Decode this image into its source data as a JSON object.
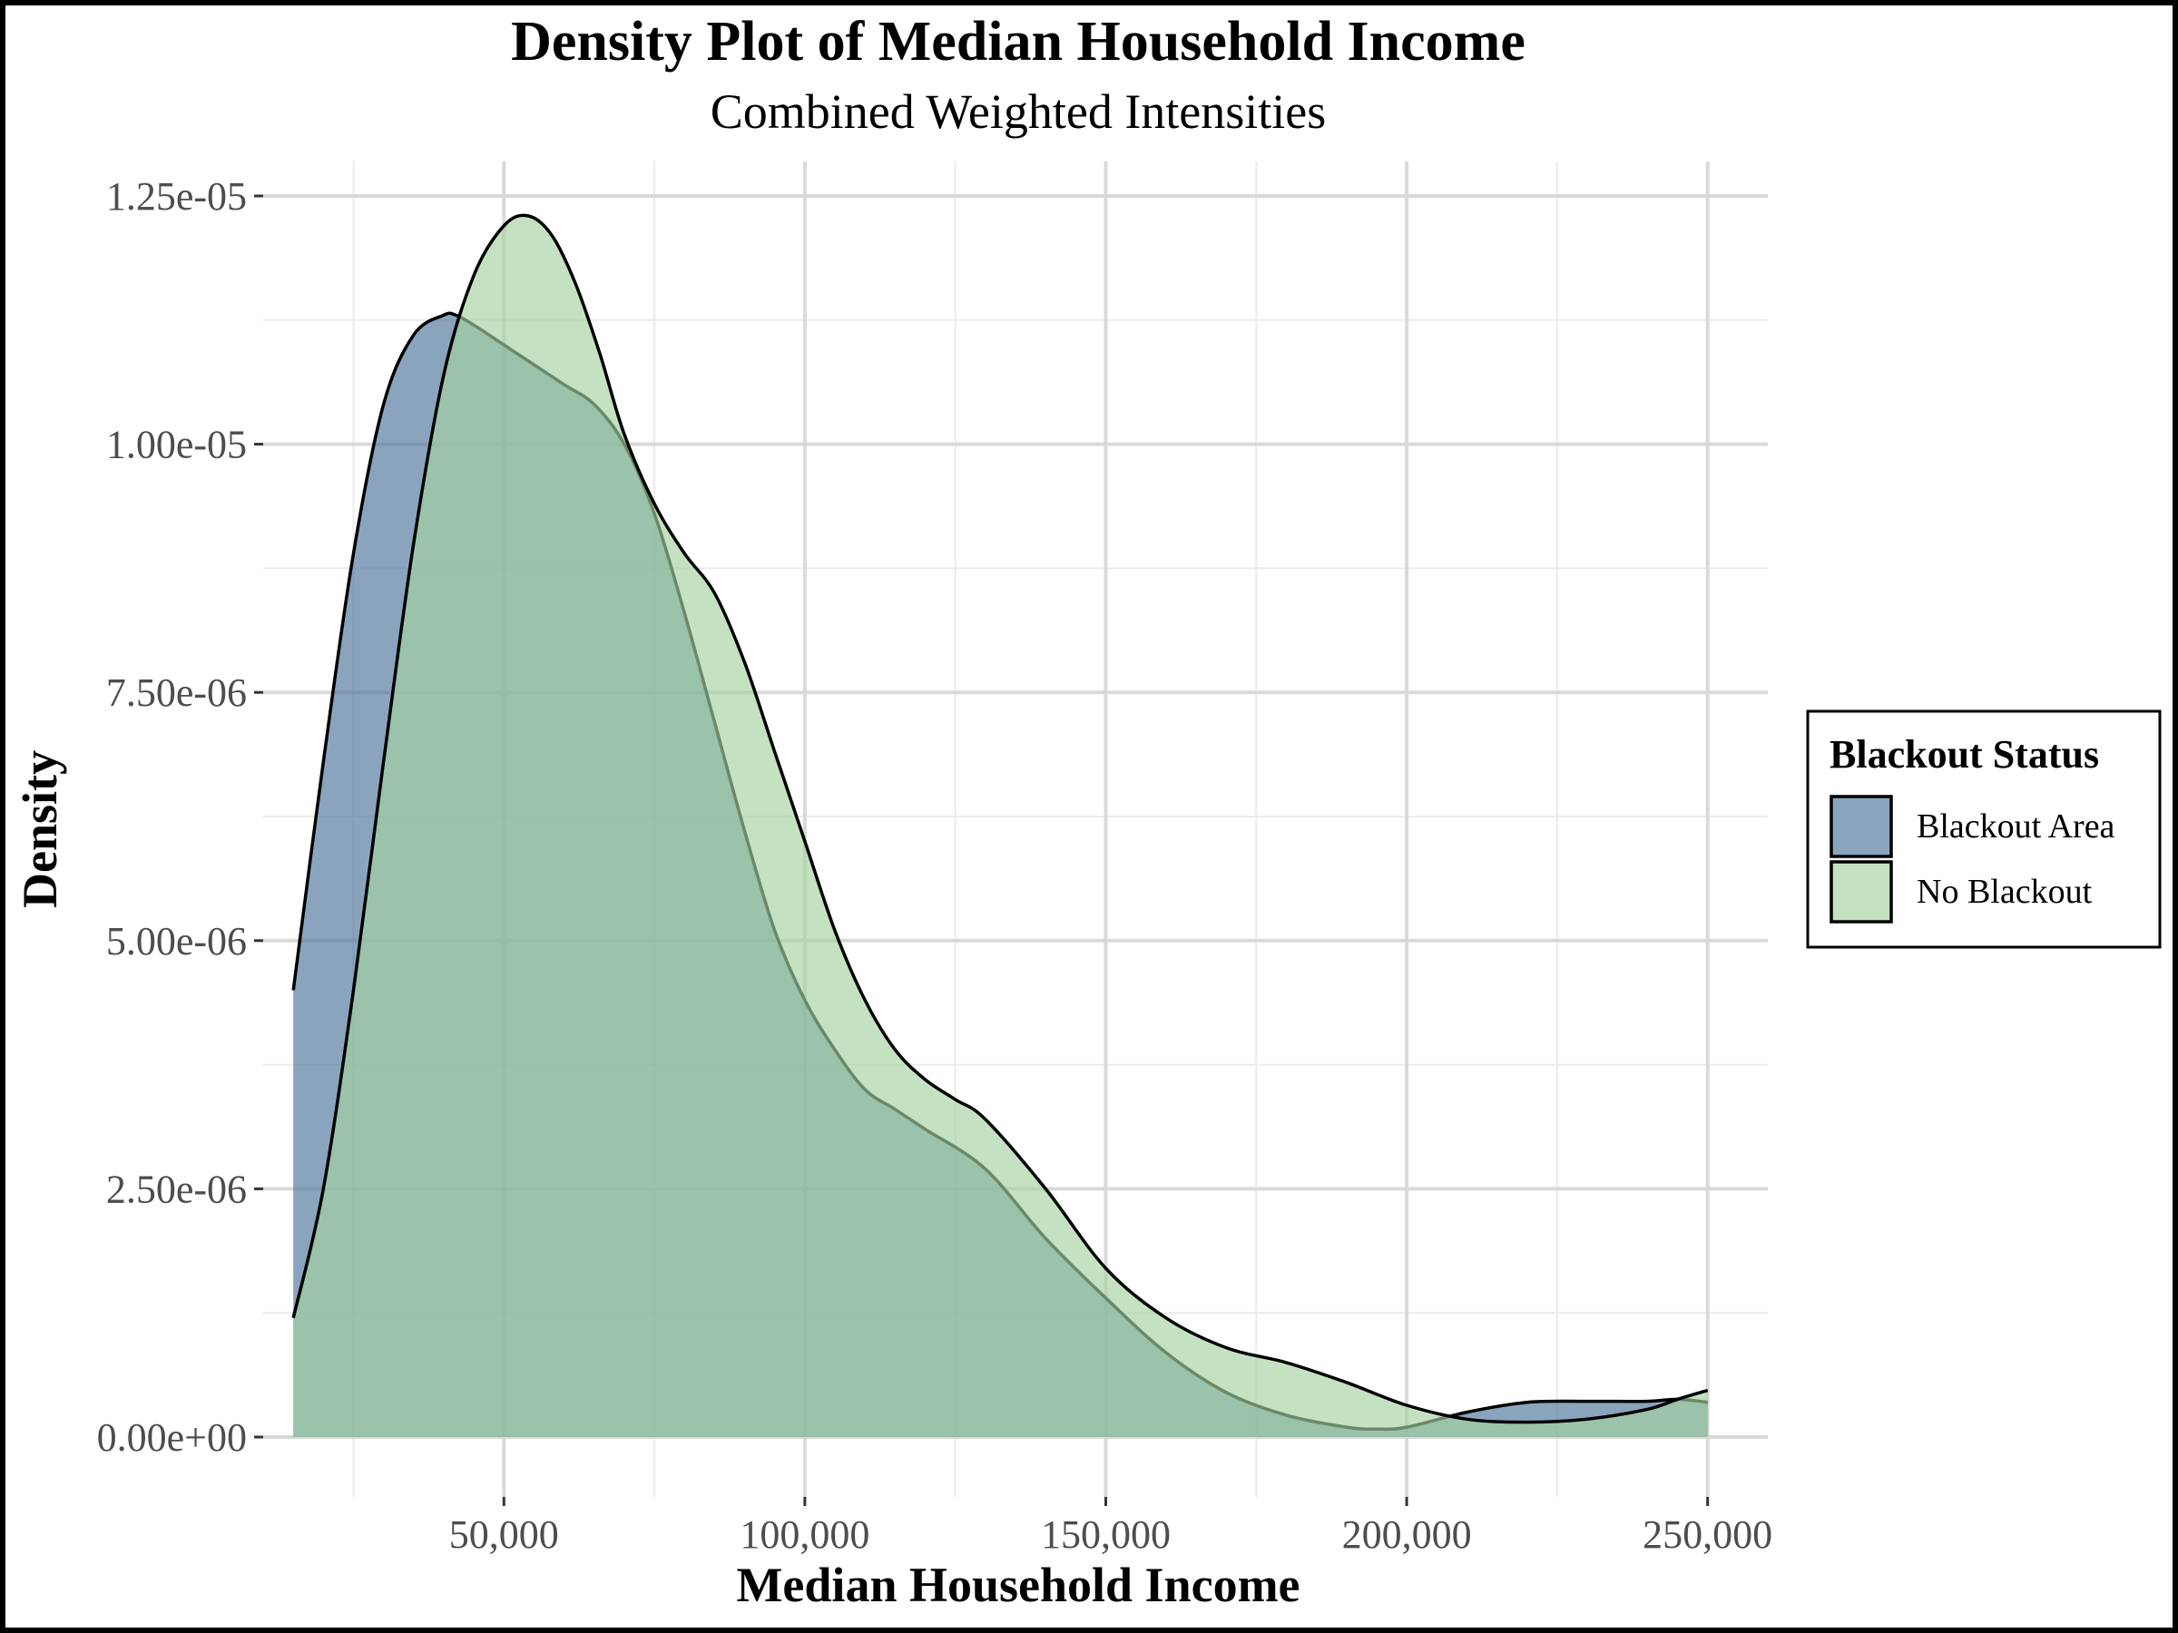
{
  "chart_data": {
    "type": "area",
    "title": "Density Plot of Median Household Income",
    "subtitle": "Combined Weighted Intensities",
    "xlabel": "Median Household Income",
    "ylabel": "Density",
    "xlim": [
      10000,
      260000
    ],
    "ylim": [
      0,
      1.25e-05
    ],
    "x_ticks": [
      {
        "value": 50000,
        "label": "50,000"
      },
      {
        "value": 100000,
        "label": "100,000"
      },
      {
        "value": 150000,
        "label": "150,000"
      },
      {
        "value": 200000,
        "label": "200,000"
      },
      {
        "value": 250000,
        "label": "250,000"
      }
    ],
    "y_ticks": [
      {
        "value": 0,
        "label": "0.00e+00"
      },
      {
        "value": 2.5e-06,
        "label": "2.50e-06"
      },
      {
        "value": 5e-06,
        "label": "5.00e-06"
      },
      {
        "value": 7.5e-06,
        "label": "7.50e-06"
      },
      {
        "value": 1e-05,
        "label": "1.00e-05"
      },
      {
        "value": 1.25e-05,
        "label": "1.25e-05"
      }
    ],
    "grid": true,
    "legend": {
      "title": "Blackout Status",
      "position": "right"
    },
    "series": [
      {
        "name": "Blackout Area",
        "color": "#4c7399",
        "x": [
          15000,
          20000,
          25000,
          30000,
          35000,
          40000,
          42000,
          45000,
          50000,
          55000,
          60000,
          65000,
          70000,
          75000,
          80000,
          85000,
          90000,
          95000,
          100000,
          105000,
          110000,
          115000,
          120000,
          130000,
          140000,
          150000,
          160000,
          170000,
          180000,
          190000,
          195000,
          200000,
          210000,
          220000,
          230000,
          240000,
          245000,
          250000
        ],
        "y": [
          4.5e-06,
          6.8e-06,
          8.9e-06,
          1.04e-05,
          1.11e-05,
          1.13e-05,
          1.13e-05,
          1.12e-05,
          1.1e-05,
          1.08e-05,
          1.06e-05,
          1.04e-05,
          1e-05,
          9.3e-06,
          8.3e-06,
          7.2e-06,
          6.1e-06,
          5.1e-06,
          4.4e-06,
          3.9e-06,
          3.5e-06,
          3.3e-06,
          3.1e-06,
          2.7e-06,
          2e-06,
          1.4e-06,
          8.5e-07,
          4.5e-07,
          2.2e-07,
          1e-07,
          8e-08,
          1e-07,
          2.5e-07,
          3.5e-07,
          3.6e-07,
          3.6e-07,
          3.8e-07,
          3.5e-07
        ]
      },
      {
        "name": "No Blackout",
        "color": "#a5d3a0",
        "x": [
          15000,
          20000,
          25000,
          30000,
          35000,
          40000,
          45000,
          50000,
          54000,
          58000,
          62000,
          66000,
          70000,
          75000,
          80000,
          85000,
          90000,
          95000,
          100000,
          105000,
          110000,
          115000,
          120000,
          125000,
          130000,
          140000,
          150000,
          160000,
          170000,
          180000,
          190000,
          200000,
          210000,
          220000,
          230000,
          240000,
          245000,
          250000
        ],
        "y": [
          1.2e-06,
          2.5e-06,
          4.5e-06,
          6.8e-06,
          9e-06,
          1.07e-05,
          1.17e-05,
          1.22e-05,
          1.23e-05,
          1.21e-05,
          1.16e-05,
          1.09e-05,
          1.01e-05,
          9.4e-06,
          8.9e-06,
          8.5e-06,
          7.8e-06,
          6.9e-06,
          6e-06,
          5.1e-06,
          4.4e-06,
          3.9e-06,
          3.6e-06,
          3.4e-06,
          3.2e-06,
          2.5e-06,
          1.7e-06,
          1.2e-06,
          9e-07,
          7.5e-07,
          5.5e-07,
          3.2e-07,
          1.8e-07,
          1.5e-07,
          1.8e-07,
          2.8e-07,
          3.8e-07,
          4.7e-07
        ]
      }
    ]
  }
}
